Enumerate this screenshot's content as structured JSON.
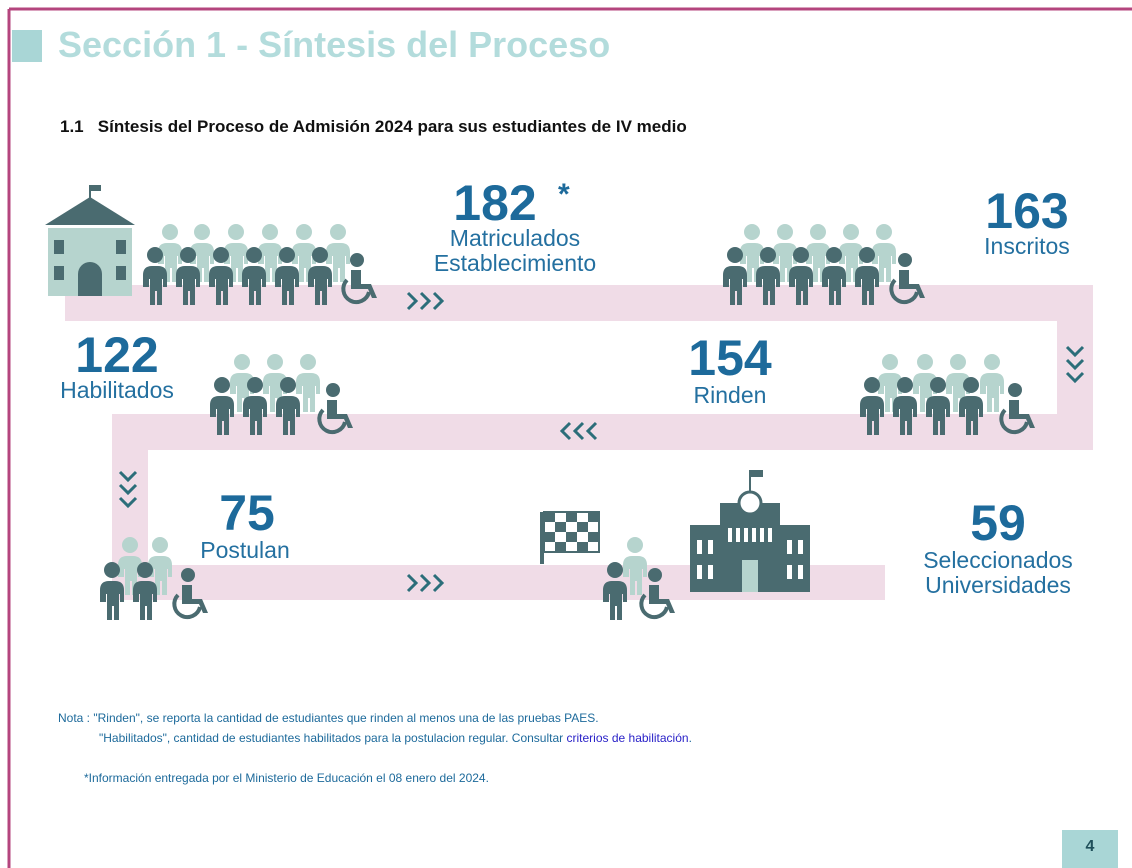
{
  "header": {
    "title": "Sección 1 - Síntesis del Proceso"
  },
  "subtitle": "1.1   Síntesis del Proceso de Admisión 2024 para sus estudiantes de IV medio",
  "stages": [
    {
      "number": 182,
      "mark": "*",
      "label": [
        "Matriculados",
        "Establecimiento"
      ]
    },
    {
      "number": 163,
      "label": [
        "Inscritos"
      ]
    },
    {
      "number": 154,
      "label": [
        "Rinden"
      ]
    },
    {
      "number": 122,
      "label": [
        "Habilitados"
      ]
    },
    {
      "number": 75,
      "label": [
        "Postulan"
      ]
    },
    {
      "number": 59,
      "label": [
        "Seleccionados",
        "Universidades"
      ]
    }
  ],
  "notes": {
    "line1": "Nota : \"Rinden\", se reporta la cantidad de estudiantes que rinden al menos una de las pruebas PAES.",
    "line2": "\"Habilitados\", cantidad de estudiantes habilitados para la postulacion regular. Consultar",
    "link": "criterios de habilitación",
    "end": ".",
    "footnote": "*Información entregada por el Ministerio de Educación el 08 enero del 2024."
  },
  "page_number": 4
}
